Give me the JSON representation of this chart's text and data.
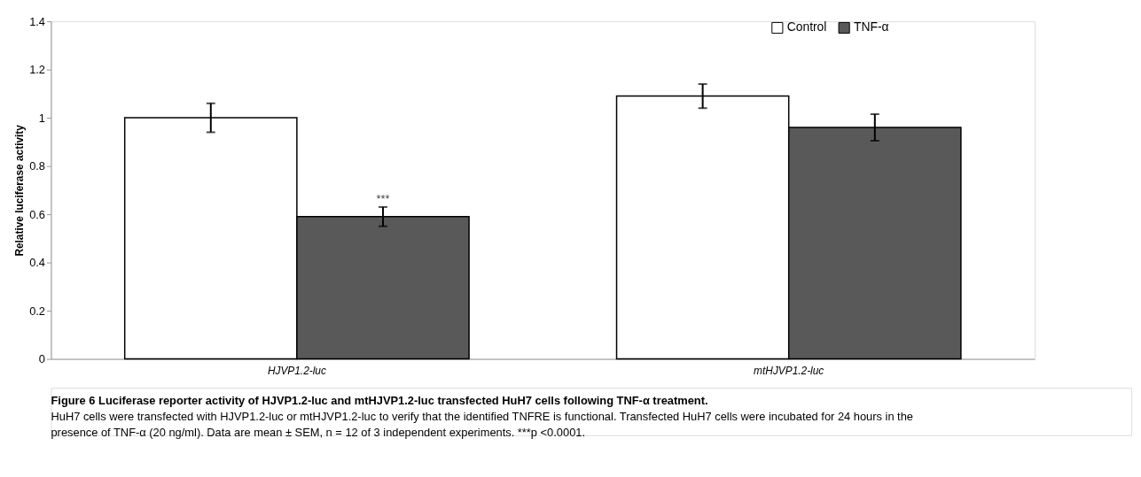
{
  "chart_data": {
    "type": "bar",
    "title": "Figure 6 Luciferase reporter activity of HJVP1.2-luc and mtHJVP1.2-luc transfected HuH7 cells following TNF-α treatment.",
    "ylabel": "Relative luciferase activity",
    "categories": [
      "HJVP1.2-luc",
      "mtHJVP1.2-luc"
    ],
    "series": [
      {
        "name": "Control",
        "color": "#ffffff",
        "values": [
          1.0,
          1.09
        ],
        "errors": [
          0.06,
          0.05
        ]
      },
      {
        "name": "TNF-α",
        "color": "#595959",
        "values": [
          0.59,
          0.96
        ],
        "errors": [
          0.04,
          0.055
        ]
      }
    ],
    "ylim": [
      0,
      1.4
    ],
    "yticks": [
      0,
      0.2,
      0.4,
      0.6,
      0.8,
      1,
      1.2,
      1.4
    ],
    "grid": false,
    "legend": "top right",
    "annotations": [
      "***",
      "HuH7 cells were transfected with HJVP1.2-luc or mtHJVP1.2-luc to verify that the identified TNFRE is functional. Transfected HuH7 cells were incubated for 24 hours in the presence of TNF-α (20 ng/ml). Data are mean ± SEM, n = 12 of 3 independent experiments. ***p <0.0001."
    ]
  }
}
